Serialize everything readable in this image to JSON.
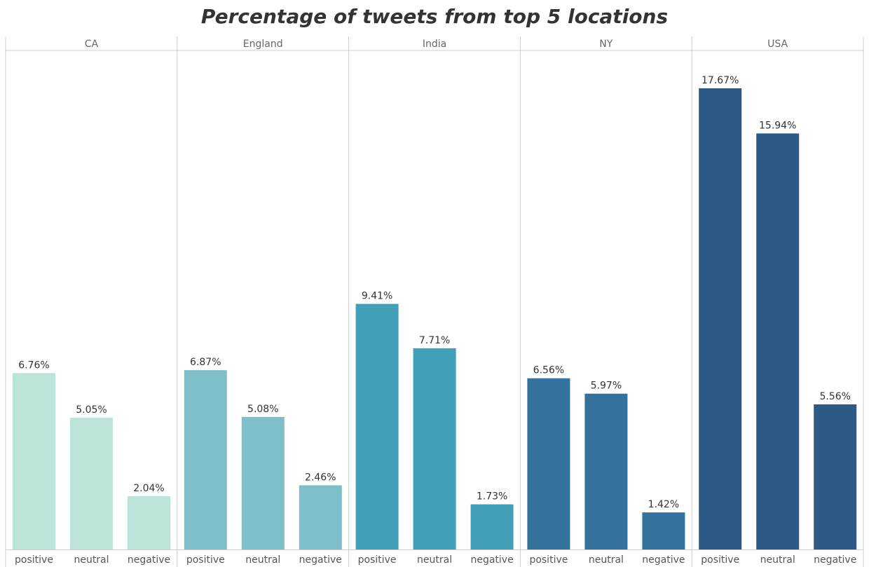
{
  "chart_data": {
    "type": "bar",
    "title": "Percentage of tweets from top 5 locations",
    "xlabel": "",
    "ylabel": "",
    "ylim": [
      0,
      18.5
    ],
    "grid": false,
    "legend": "none",
    "categories": [
      "positive",
      "neutral",
      "negative"
    ],
    "panels": [
      {
        "name": "CA",
        "color": "#bde4da",
        "values": [
          6.76,
          5.05,
          2.04
        ],
        "labels": [
          "6.76%",
          "5.05%",
          "2.04%"
        ]
      },
      {
        "name": "England",
        "color": "#7dc0c9",
        "values": [
          6.87,
          5.08,
          2.46
        ],
        "labels": [
          "6.87%",
          "5.08%",
          "2.46%"
        ]
      },
      {
        "name": "India",
        "color": "#429fb8",
        "values": [
          9.41,
          7.71,
          1.73
        ],
        "labels": [
          "9.41%",
          "7.71%",
          "1.73%"
        ]
      },
      {
        "name": "NY",
        "color": "#33739b",
        "values": [
          6.56,
          5.97,
          1.42
        ],
        "labels": [
          "6.56%",
          "5.97%",
          "1.42%"
        ]
      },
      {
        "name": "USA",
        "color": "#2d5986",
        "values": [
          17.67,
          15.94,
          5.56
        ],
        "labels": [
          "17.67%",
          "15.94%",
          "5.56%"
        ]
      }
    ]
  }
}
